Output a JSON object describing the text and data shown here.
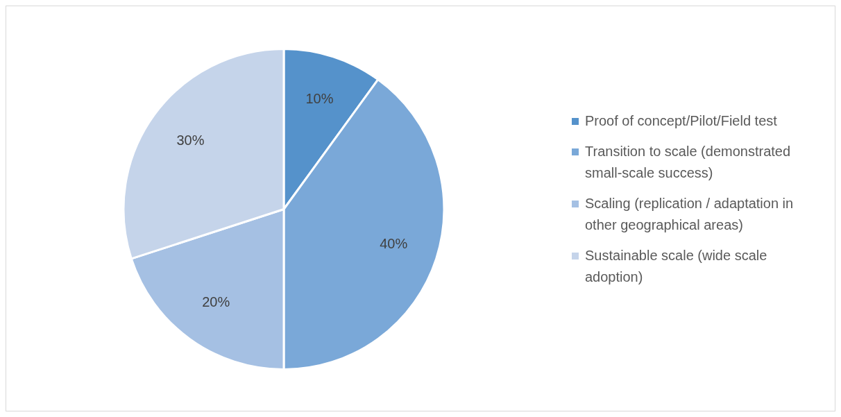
{
  "chart_data": {
    "type": "pie",
    "categories": [
      "Proof of concept/Pilot/Field test",
      "Transition to scale (demonstrated small-scale success)",
      "Scaling (replication / adaptation in other geographical areas)",
      "Sustainable scale (wide scale adoption)"
    ],
    "values": [
      10,
      40,
      20,
      30
    ],
    "colors": [
      "#5592cb",
      "#7aa8d8",
      "#a5c0e3",
      "#c5d4ea"
    ],
    "value_labels": [
      "10%",
      "40%",
      "20%",
      "30%"
    ],
    "legend": "right"
  }
}
